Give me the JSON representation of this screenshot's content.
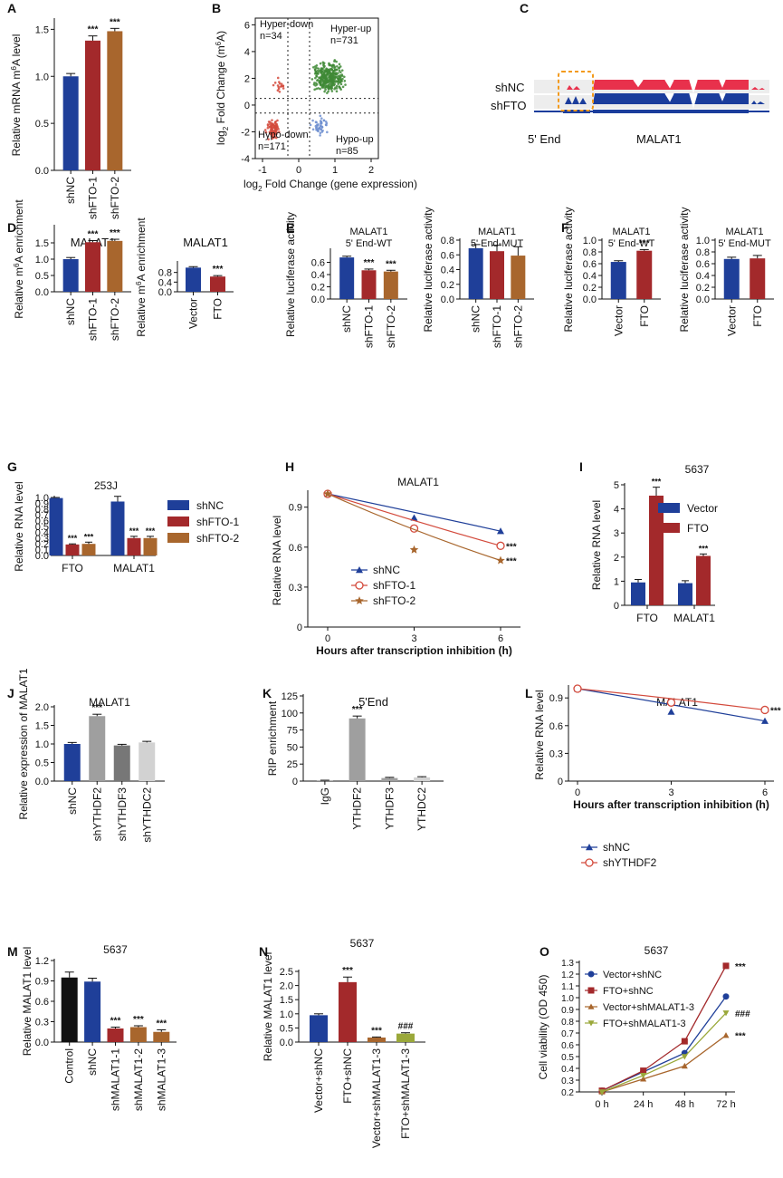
{
  "colors": {
    "navy": "#1f3f99",
    "red": "#a3292b",
    "brown": "#a8662d",
    "black": "#111111",
    "grey_dark": "#777777",
    "grey_mid": "#9f9f9f",
    "grey_light": "#d2d2d2",
    "olive": "#9aa83a",
    "green": "#3f8a36",
    "scatter_red": "#d34a3c",
    "scatter_blue": "#6e8fd0",
    "track_red": "#e8314c",
    "track_blue": "#1b3d9c",
    "orange": "#f39a1b"
  },
  "chart_data": [
    {
      "id": "A",
      "type": "bar",
      "panel_label": "A",
      "title": "",
      "ylabel": "Relative mRNA m6A level",
      "ylim": [
        0,
        1.6
      ],
      "yticks": [
        0.0,
        0.5,
        1.0,
        1.5
      ],
      "yticklabels": [
        "0.0",
        "0.5",
        "1.0",
        "1.5"
      ],
      "categories": [
        "shNC",
        "shFTO-1",
        "shFTO-2"
      ],
      "values": [
        1.0,
        1.38,
        1.48
      ],
      "errors": [
        0.03,
        0.05,
        0.03
      ],
      "bar_colors": [
        "navy",
        "red",
        "brown"
      ],
      "sig": [
        "",
        "***",
        "***"
      ]
    },
    {
      "id": "B",
      "type": "scatter",
      "panel_label": "B",
      "xlabel": "log2 Fold Change (gene expression)",
      "ylabel": "log2 Fold Change (m6A)",
      "xlim": [
        -1.2,
        2.2
      ],
      "ylim": [
        -4,
        6.5
      ],
      "xticks": [
        -1,
        0,
        1,
        2
      ],
      "xticklabels": [
        "-1",
        "0",
        "1",
        "2"
      ],
      "yticks": [
        -4,
        -2,
        0,
        2,
        4,
        6
      ],
      "yticklabels": [
        "-4",
        "-2",
        "0",
        "2",
        "4",
        "6"
      ],
      "quadrants": [
        {
          "name": "Hyper-down",
          "count": "n=34"
        },
        {
          "name": "Hyper-up",
          "count": "n=731"
        },
        {
          "name": "Hypo-down",
          "count": "n=171"
        },
        {
          "name": "Hypo-up",
          "count": "n=85"
        }
      ]
    },
    {
      "id": "C",
      "type": "track",
      "panel_label": "C",
      "labels": [
        "shNC",
        "shFTO",
        "5' End",
        "MALAT1"
      ]
    },
    {
      "id": "D1",
      "type": "bar",
      "panel_label": "D",
      "title": "MALAT1",
      "ylabel": "Relative m6A enrichment",
      "ylim": [
        0,
        2.0
      ],
      "yticks": [
        0.0,
        0.5,
        1.0,
        1.5
      ],
      "yticklabels": [
        "0.0",
        "0.5",
        "1.0",
        "1.5"
      ],
      "categories": [
        "shNC",
        "shFTO-1",
        "shFTO-2"
      ],
      "values": [
        1.0,
        1.52,
        1.56
      ],
      "errors": [
        0.05,
        0.05,
        0.05
      ],
      "bar_colors": [
        "navy",
        "red",
        "brown"
      ],
      "sig": [
        "",
        "***",
        "***"
      ]
    },
    {
      "id": "D2",
      "type": "bar",
      "title": "MALAT1",
      "ylabel": "Relative m6A enrichment",
      "ylim": [
        0,
        1.2
      ],
      "yticks": [
        0.0,
        0.4,
        0.8
      ],
      "yticklabels": [
        "0.0",
        "0.4",
        "0.8"
      ],
      "categories": [
        "Vector",
        "FTO"
      ],
      "values": [
        1.0,
        0.63
      ],
      "errors": [
        0.04,
        0.04
      ],
      "bar_colors": [
        "navy",
        "red"
      ],
      "sig": [
        "",
        "***"
      ]
    },
    {
      "id": "E1",
      "type": "bar",
      "panel_label": "E",
      "title": "MALAT1",
      "subtitle": "5' End-WT",
      "ylabel": "Relative luciferase activity",
      "ylim": [
        0,
        0.8
      ],
      "yticks": [
        0.0,
        0.2,
        0.4,
        0.6
      ],
      "yticklabels": [
        "0.0",
        "0.2",
        "0.4",
        "0.6"
      ],
      "categories": [
        "shNC",
        "shFTO-1",
        "shFTO-2"
      ],
      "values": [
        0.68,
        0.47,
        0.45
      ],
      "errors": [
        0.02,
        0.02,
        0.02
      ],
      "bar_colors": [
        "navy",
        "red",
        "brown"
      ],
      "sig": [
        "",
        "***",
        "***"
      ]
    },
    {
      "id": "E2",
      "type": "bar",
      "title": "MALAT1",
      "subtitle": "5' End-MUT",
      "ylabel": "Relative luciferase activity",
      "ylim": [
        0,
        0.8
      ],
      "yticks": [
        0.0,
        0.2,
        0.4,
        0.6,
        0.8
      ],
      "yticklabels": [
        "0.0",
        "0.2",
        "0.4",
        "0.6",
        "0.8"
      ],
      "categories": [
        "shNC",
        "shFTO-1",
        "shFTO-2"
      ],
      "values": [
        0.69,
        0.65,
        0.59
      ],
      "errors": [
        0.05,
        0.08,
        0.12
      ],
      "bar_colors": [
        "navy",
        "red",
        "brown"
      ],
      "sig": [
        "",
        "",
        ""
      ]
    },
    {
      "id": "F1",
      "type": "bar",
      "panel_label": "F",
      "title": "MALAT1",
      "subtitle": "5' End-WT",
      "ylabel": "Relative luciferase activity",
      "ylim": [
        0,
        1.0
      ],
      "yticks": [
        0.0,
        0.2,
        0.4,
        0.6,
        0.8,
        1.0
      ],
      "yticklabels": [
        "0.0",
        "0.2",
        "0.4",
        "0.6",
        "0.8",
        "1.0"
      ],
      "categories": [
        "Vector",
        "FTO"
      ],
      "values": [
        0.63,
        0.82
      ],
      "errors": [
        0.02,
        0.02
      ],
      "bar_colors": [
        "navy",
        "red"
      ],
      "sig": [
        "",
        "***"
      ]
    },
    {
      "id": "F2",
      "type": "bar",
      "title": "MALAT1",
      "subtitle": "5' End-MUT",
      "ylabel": "Relative luciferase activity",
      "ylim": [
        0,
        1.0
      ],
      "yticks": [
        0.0,
        0.2,
        0.4,
        0.6,
        0.8,
        1.0
      ],
      "yticklabels": [
        "0.0",
        "0.2",
        "0.4",
        "0.6",
        "0.8",
        "1.0"
      ],
      "categories": [
        "Vector",
        "FTO"
      ],
      "values": [
        0.68,
        0.69
      ],
      "errors": [
        0.03,
        0.05
      ],
      "bar_colors": [
        "navy",
        "red"
      ],
      "sig": [
        "",
        ""
      ]
    },
    {
      "id": "G",
      "type": "bar",
      "grouped": true,
      "panel_label": "G",
      "title": "253J",
      "ylabel": "Relative RNA level",
      "ylim": [
        0,
        1.0
      ],
      "yticks": [
        0.0,
        0.1,
        0.2,
        0.3,
        0.4,
        0.5,
        0.6,
        0.7,
        0.8,
        0.9,
        1.0
      ],
      "yticklabels": [
        "0.0",
        "0.1",
        "0.2",
        "0.3",
        "0.4",
        "0.5",
        "0.6",
        "0.7",
        "0.8",
        "0.9",
        "1.0"
      ],
      "categories": [
        "FTO",
        "MALAT1"
      ],
      "series": [
        {
          "name": "shNC",
          "color": "navy",
          "values": [
            0.99,
            0.93
          ],
          "errors": [
            0.01,
            0.09
          ],
          "sig": [
            "",
            ""
          ]
        },
        {
          "name": "shFTO-1",
          "color": "red",
          "values": [
            0.19,
            0.3
          ],
          "errors": [
            0.01,
            0.03
          ],
          "sig": [
            "***",
            "***"
          ]
        },
        {
          "name": "shFTO-2",
          "color": "brown",
          "values": [
            0.2,
            0.3
          ],
          "errors": [
            0.03,
            0.03
          ],
          "sig": [
            "***",
            "***"
          ]
        }
      ]
    },
    {
      "id": "H",
      "type": "line",
      "panel_label": "H",
      "title": "MALAT1",
      "xlabel": "Hours after transcription inhibition (h)",
      "ylabel": "Relative RNA level",
      "xlim": [
        0,
        6
      ],
      "ylim": [
        0,
        1.0
      ],
      "xticks": [
        0,
        3,
        6
      ],
      "xticklabels": [
        "0",
        "3",
        "6"
      ],
      "yticks": [
        0.0,
        0.3,
        0.6,
        0.9
      ],
      "yticklabels": [
        "0",
        "0.3",
        "0.6",
        "0.9"
      ],
      "series": [
        {
          "name": "shNC",
          "color": "navy",
          "marker": "triangle",
          "x": [
            0,
            3,
            6
          ],
          "points": [
            1.0,
            0.82,
            0.72
          ],
          "fit": [
            1.0,
            0.85,
            0.72
          ],
          "sig": ""
        },
        {
          "name": "shFTO-1",
          "color": "scatter_red",
          "marker": "circle",
          "x": [
            0,
            3,
            6
          ],
          "points": [
            1.0,
            0.74,
            0.61
          ],
          "fit": [
            1.0,
            0.78,
            0.61
          ],
          "sig": "***"
        },
        {
          "name": "shFTO-2",
          "color": "brown",
          "marker": "star",
          "x": [
            0,
            3,
            6
          ],
          "points": [
            1.0,
            0.58,
            0.5
          ],
          "fit": [
            1.0,
            0.7,
            0.5
          ],
          "sig": "***"
        }
      ]
    },
    {
      "id": "I",
      "type": "bar",
      "grouped": true,
      "panel_label": "I",
      "title": "5637",
      "ylabel": "Relative RNA level",
      "ylim": [
        0,
        5
      ],
      "yticks": [
        0,
        1,
        2,
        3,
        4,
        5
      ],
      "yticklabels": [
        "0",
        "1",
        "2",
        "3",
        "4",
        "5"
      ],
      "categories": [
        "FTO",
        "MALAT1"
      ],
      "series": [
        {
          "name": "Vector",
          "color": "navy",
          "values": [
            0.95,
            0.92
          ],
          "errors": [
            0.12,
            0.1
          ],
          "sig": [
            "",
            ""
          ]
        },
        {
          "name": "FTO",
          "color": "red",
          "values": [
            4.55,
            2.05
          ],
          "errors": [
            0.35,
            0.08
          ],
          "sig": [
            "***",
            "***"
          ]
        }
      ]
    },
    {
      "id": "J",
      "type": "bar",
      "panel_label": "J",
      "title": "MALAT1",
      "ylabel": "Relative expression of MALAT1",
      "ylim": [
        0,
        2.0
      ],
      "yticks": [
        0.0,
        0.5,
        1.0,
        1.5,
        2.0
      ],
      "yticklabels": [
        "0.0",
        "0.5",
        "1.0",
        "1.5",
        "2.0"
      ],
      "categories": [
        "shNC",
        "shYTHDF2",
        "shYTHDF3",
        "shYTHDC2"
      ],
      "values": [
        1.0,
        1.75,
        0.96,
        1.04
      ],
      "errors": [
        0.04,
        0.05,
        0.03,
        0.03
      ],
      "bar_colors": [
        "navy",
        "grey_mid",
        "grey_dark",
        "grey_light"
      ],
      "sig": [
        "",
        "***",
        "",
        ""
      ]
    },
    {
      "id": "K",
      "type": "bar",
      "panel_label": "K",
      "title": "5'End",
      "ylabel": "RIP enrichment",
      "ylim": [
        0,
        125
      ],
      "yticks": [
        0,
        25,
        50,
        75,
        100,
        125
      ],
      "yticklabels": [
        "0",
        "25",
        "50",
        "75",
        "100",
        "125"
      ],
      "categories": [
        "IgG",
        "YTHDF2",
        "YTHDF3",
        "YTHDC2"
      ],
      "values": [
        1.0,
        92,
        4.5,
        5.5
      ],
      "errors": [
        0.3,
        3.5,
        1.0,
        1.0
      ],
      "bar_colors": [
        "grey_mid",
        "grey_mid",
        "grey_mid",
        "grey_light"
      ],
      "sig": [
        "",
        "***",
        "",
        ""
      ]
    },
    {
      "id": "L",
      "type": "line",
      "panel_label": "L",
      "title": "MALAT1",
      "xlabel": "Hours after transcription inhibition (h)",
      "ylabel": "Relative RNA level",
      "xlim": [
        0,
        6
      ],
      "ylim": [
        0,
        1.0
      ],
      "xticks": [
        0,
        3,
        6
      ],
      "xticklabels": [
        "0",
        "3",
        "6"
      ],
      "yticks": [
        0.0,
        0.3,
        0.6,
        0.9
      ],
      "yticklabels": [
        "0",
        "0.3",
        "0.6",
        "0.9"
      ],
      "series": [
        {
          "name": "shNC",
          "color": "navy",
          "marker": "triangle",
          "x": [
            0,
            3,
            6
          ],
          "points": [
            1.0,
            0.75,
            0.65
          ],
          "fit": [
            1.0,
            0.81,
            0.65
          ],
          "sig": ""
        },
        {
          "name": "shYTHDF2",
          "color": "scatter_red",
          "marker": "circle",
          "x": [
            0,
            3,
            6
          ],
          "points": [
            1.0,
            0.85,
            0.77
          ],
          "fit": [
            1.0,
            0.88,
            0.77
          ],
          "sig": "***"
        }
      ]
    },
    {
      "id": "M",
      "type": "bar",
      "panel_label": "M",
      "title": "5637",
      "ylabel": "Relative MALAT1 level",
      "ylim": [
        0,
        1.2
      ],
      "yticks": [
        0.0,
        0.3,
        0.6,
        0.9,
        1.2
      ],
      "yticklabels": [
        "0.0",
        "0.3",
        "0.6",
        "0.9",
        "1.2"
      ],
      "categories": [
        "Control",
        "shNC",
        "shMALAT1-1",
        "shMALAT1-2",
        "shMALAT1-3"
      ],
      "values": [
        0.95,
        0.89,
        0.2,
        0.22,
        0.15
      ],
      "errors": [
        0.08,
        0.05,
        0.02,
        0.02,
        0.03
      ],
      "bar_colors": [
        "black",
        "navy",
        "red",
        "brown",
        "brown"
      ],
      "sig": [
        "",
        "",
        "***",
        "***",
        "***"
      ]
    },
    {
      "id": "N",
      "type": "bar",
      "panel_label": "N",
      "title": "5637",
      "ylabel": "Relative MALAT1 level",
      "ylim": [
        0,
        2.5
      ],
      "yticks": [
        0.0,
        0.5,
        1.0,
        1.5,
        2.0,
        2.5
      ],
      "yticklabels": [
        "0.0",
        "0.5",
        "1.0",
        "1.5",
        "2.0",
        "2.5"
      ],
      "categories": [
        "Vector+shNC",
        "FTO+shNC",
        "Vector+shMALAT1-3",
        "FTO+shMALAT1-3"
      ],
      "values": [
        0.95,
        2.12,
        0.16,
        0.3
      ],
      "errors": [
        0.05,
        0.18,
        0.02,
        0.03
      ],
      "bar_colors": [
        "navy",
        "red",
        "brown",
        "olive"
      ],
      "sig": [
        "",
        "***",
        "***",
        "###"
      ]
    },
    {
      "id": "O",
      "type": "line",
      "panel_label": "O",
      "title": "5637",
      "ylabel": "Cell viability (OD 450)",
      "categories": [
        "0 h",
        "24 h",
        "48 h",
        "72 h"
      ],
      "ylim": [
        0.2,
        1.3
      ],
      "yticks": [
        0.2,
        0.3,
        0.4,
        0.5,
        0.6,
        0.7,
        0.8,
        0.9,
        1.0,
        1.1,
        1.2,
        1.3
      ],
      "yticklabels": [
        "0.2",
        "0.3",
        "0.4",
        "0.5",
        "0.6",
        "0.7",
        "0.8",
        "0.9",
        "1.0",
        "1.1",
        "1.2",
        "1.3"
      ],
      "series": [
        {
          "name": "Vector+shNC",
          "color": "navy",
          "marker": "circle",
          "values": [
            0.21,
            0.37,
            0.53,
            1.01
          ],
          "sig": ""
        },
        {
          "name": "FTO+shNC",
          "color": "red",
          "marker": "square",
          "values": [
            0.21,
            0.38,
            0.63,
            1.27
          ],
          "sig": "***"
        },
        {
          "name": "Vector+shMALAT1-3",
          "color": "brown",
          "marker": "triangle",
          "values": [
            0.2,
            0.31,
            0.42,
            0.68
          ],
          "sig": "***"
        },
        {
          "name": "FTO+shMALAT1-3",
          "color": "olive",
          "marker": "triangle-down",
          "values": [
            0.2,
            0.34,
            0.5,
            0.87
          ],
          "sig": "###"
        }
      ]
    }
  ]
}
